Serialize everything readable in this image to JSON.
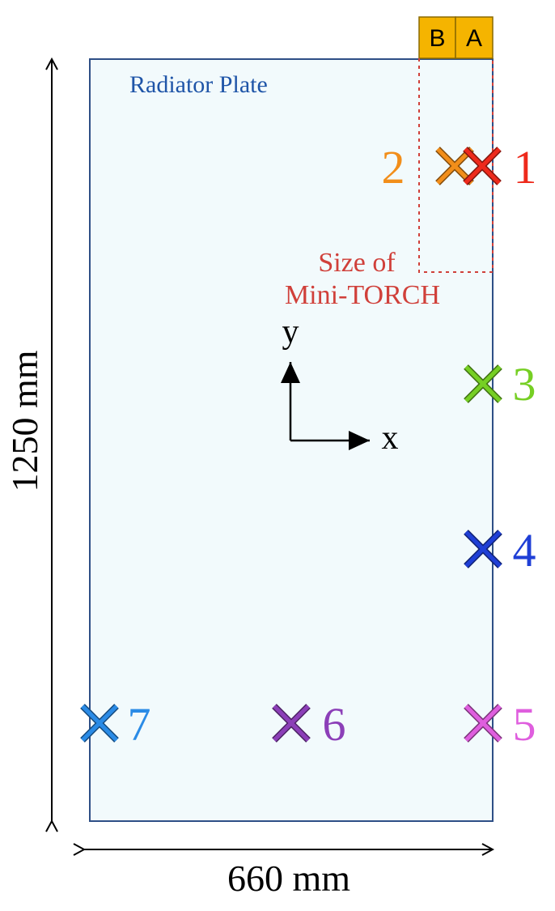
{
  "plate": {
    "title": "Radiator Plate",
    "title_color": "#1f55a8",
    "fill_color": "#f2fafc",
    "border_color": "#2e4f86"
  },
  "modules": [
    {
      "label": "B",
      "color": "#f5b400"
    },
    {
      "label": "A",
      "color": "#f5b400"
    }
  ],
  "mini_torch": {
    "label_line1": "Size of",
    "label_line2": "Mini-TORCH",
    "color": "#d0403a"
  },
  "dimensions": {
    "height_label": "1250 mm",
    "width_label": "660 mm"
  },
  "axes": {
    "x_label": "x",
    "y_label": "y"
  },
  "markers": [
    {
      "label": "1",
      "color": "#ee2a1c",
      "icon": "cross-icon"
    },
    {
      "label": "2",
      "color": "#f28e1a",
      "icon": "cross-icon"
    },
    {
      "label": "3",
      "color": "#76cf24",
      "icon": "cross-icon"
    },
    {
      "label": "4",
      "color": "#1f3fd6",
      "icon": "cross-icon"
    },
    {
      "label": "5",
      "color": "#df5ede",
      "icon": "cross-icon"
    },
    {
      "label": "6",
      "color": "#8c3fb8",
      "icon": "cross-icon"
    },
    {
      "label": "7",
      "color": "#2a8be6",
      "icon": "cross-icon"
    }
  ]
}
